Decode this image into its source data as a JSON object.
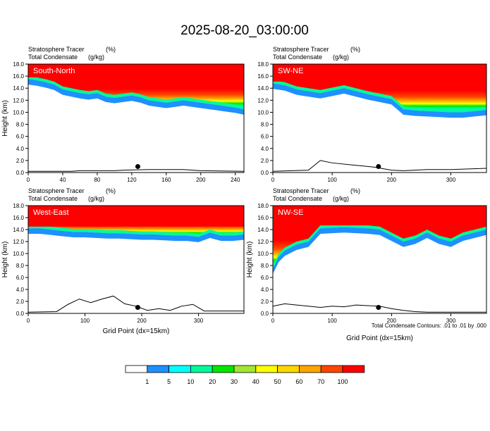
{
  "page": {
    "title": "2025-08-20_03:00:00",
    "contour_note": "Total Condensate Contours: .01 to .01 by .000",
    "xlabel": "Grid Point (dx=15km)"
  },
  "colors": {
    "levels": [
      "#ffffff",
      "#1e90ff",
      "#00ffff",
      "#00fa9a",
      "#00e600",
      "#a0e632",
      "#ffff00",
      "#ffd700",
      "#ffa500",
      "#ff4500",
      "#ff0000"
    ],
    "ground": "#000000"
  },
  "colorbar": {
    "labels": [
      "1",
      "5",
      "10",
      "20",
      "30",
      "40",
      "50",
      "60",
      "70",
      "100"
    ]
  },
  "chart_data": [
    {
      "type": "heatmap",
      "label": "South-North",
      "subtitle_left": [
        "Stratosphere Tracer",
        "Total Condensate"
      ],
      "subtitle_units": [
        "(%)",
        "(g/kg)"
      ],
      "ylabel": "Height (km)",
      "xlabel": "",
      "xlim": [
        0,
        250
      ],
      "ylim": [
        0,
        18
      ],
      "xticks": [
        "0",
        "40",
        "80",
        "120",
        "160",
        "200",
        "240"
      ],
      "yticks": [
        "0.0",
        "2.0",
        "4.0",
        "6.0",
        "8.0",
        "10.0",
        "12.0",
        "14.0",
        "16.0",
        "18.0"
      ],
      "tropopause_x": [
        0,
        10,
        20,
        30,
        40,
        50,
        60,
        70,
        80,
        90,
        100,
        110,
        120,
        130,
        140,
        150,
        160,
        170,
        180,
        190,
        200,
        210,
        220,
        230,
        240,
        250
      ],
      "tropopause_y": [
        15.5,
        15.3,
        15.0,
        14.6,
        13.8,
        13.5,
        13.2,
        13.0,
        13.2,
        12.6,
        12.4,
        12.6,
        12.8,
        12.5,
        12.0,
        11.8,
        11.6,
        11.8,
        12.0,
        11.8,
        11.6,
        11.4,
        11.2,
        11.0,
        10.8,
        10.5
      ],
      "ground_x": [
        0,
        50,
        60,
        100,
        110,
        140,
        180,
        200,
        250
      ],
      "ground_y": [
        0.2,
        0.2,
        0.3,
        0.3,
        0.4,
        0.5,
        0.5,
        0.3,
        0.2
      ],
      "marker": [
        127,
        1.0
      ]
    },
    {
      "type": "heatmap",
      "label": "SW-NE",
      "subtitle_left": [
        "Stratosphere Tracer",
        "Total Condensate"
      ],
      "subtitle_units": [
        "(%)",
        "(g/kg)"
      ],
      "ylabel": "",
      "xlabel": "",
      "xlim": [
        0,
        360
      ],
      "ylim": [
        0,
        18
      ],
      "xticks": [
        "0",
        "100",
        "200",
        "300"
      ],
      "yticks": [
        "0.0",
        "2.0",
        "4.0",
        "6.0",
        "8.0",
        "10.0",
        "12.0",
        "14.0",
        "16.0",
        "18.0"
      ],
      "tropopause_x": [
        0,
        20,
        40,
        60,
        80,
        100,
        120,
        140,
        160,
        180,
        200,
        220,
        240,
        260,
        280,
        300,
        320,
        340,
        360
      ],
      "tropopause_y": [
        14.8,
        14.5,
        13.8,
        13.5,
        13.2,
        13.6,
        14.0,
        13.5,
        13.0,
        12.6,
        12.2,
        10.5,
        10.3,
        10.2,
        10.1,
        10.0,
        10.0,
        10.2,
        10.4
      ],
      "ground_x": [
        0,
        60,
        80,
        100,
        140,
        170,
        200,
        220,
        260,
        300,
        360
      ],
      "ground_y": [
        0.2,
        0.4,
        2.0,
        1.6,
        1.2,
        0.9,
        0.4,
        0.3,
        0.5,
        0.5,
        0.7
      ],
      "marker": [
        178,
        1.0
      ]
    },
    {
      "type": "heatmap",
      "label": "West-East",
      "subtitle_left": [
        "Stratosphere Tracer",
        "Total Condensate"
      ],
      "subtitle_units": [
        "(%)",
        "(g/kg)"
      ],
      "ylabel": "Height (km)",
      "xlabel": "Grid Point (dx=15km)",
      "xlim": [
        0,
        380
      ],
      "ylim": [
        0,
        18
      ],
      "xticks": [
        "0",
        "100",
        "200",
        "300"
      ],
      "yticks": [
        "0.0",
        "2.0",
        "4.0",
        "6.0",
        "8.0",
        "10.0",
        "12.0",
        "14.0",
        "16.0",
        "18.0"
      ],
      "tropopause_x": [
        0,
        20,
        40,
        60,
        80,
        100,
        120,
        140,
        160,
        180,
        200,
        220,
        240,
        260,
        280,
        300,
        320,
        340,
        360,
        380
      ],
      "tropopause_y": [
        14.2,
        14.2,
        14.0,
        13.8,
        13.6,
        13.6,
        13.5,
        13.4,
        13.4,
        13.3,
        13.2,
        13.2,
        13.1,
        13.0,
        13.0,
        12.8,
        13.5,
        13.0,
        13.0,
        13.2
      ],
      "ground_x": [
        0,
        50,
        70,
        90,
        110,
        130,
        150,
        170,
        190,
        210,
        230,
        250,
        270,
        290,
        310,
        340,
        380
      ],
      "ground_y": [
        0.2,
        0.3,
        1.5,
        2.4,
        1.8,
        2.4,
        2.9,
        1.6,
        1.2,
        0.5,
        0.8,
        0.5,
        1.2,
        1.5,
        0.4,
        0.4,
        0.4
      ],
      "marker": [
        193,
        1.0
      ]
    },
    {
      "type": "heatmap",
      "label": "NW-SE",
      "subtitle_left": [
        "Stratosphere Tracer",
        "Total Condensate"
      ],
      "subtitle_units": [
        "(%)",
        "(g/kg)"
      ],
      "ylabel": "Height (km)",
      "xlabel": "Grid Point (dx=15km)",
      "xlim": [
        0,
        360
      ],
      "ylim": [
        0,
        18
      ],
      "xticks": [
        "0",
        "100",
        "200",
        "300"
      ],
      "yticks": [
        "0.0",
        "2.0",
        "4.0",
        "6.0",
        "8.0",
        "10.0",
        "12.0",
        "14.0",
        "16.0",
        "18.0"
      ],
      "tropopause_x": [
        0,
        10,
        20,
        40,
        60,
        80,
        100,
        120,
        140,
        160,
        180,
        200,
        220,
        240,
        260,
        280,
        300,
        320,
        340,
        360
      ],
      "tropopause_y": [
        7.5,
        9.5,
        10.5,
        11.5,
        12.0,
        14.2,
        14.3,
        14.4,
        14.3,
        14.2,
        14.0,
        13.0,
        12.0,
        12.5,
        13.5,
        12.5,
        12.0,
        13.0,
        13.5,
        14.0
      ],
      "ground_x": [
        0,
        20,
        40,
        60,
        80,
        100,
        120,
        140,
        160,
        180,
        200,
        220,
        240,
        260,
        300,
        360
      ],
      "ground_y": [
        1.2,
        1.6,
        1.4,
        1.2,
        1.0,
        1.2,
        1.1,
        1.4,
        1.3,
        1.2,
        0.8,
        0.5,
        0.3,
        0.2,
        0.2,
        0.2
      ],
      "marker": [
        178,
        1.0
      ]
    }
  ]
}
